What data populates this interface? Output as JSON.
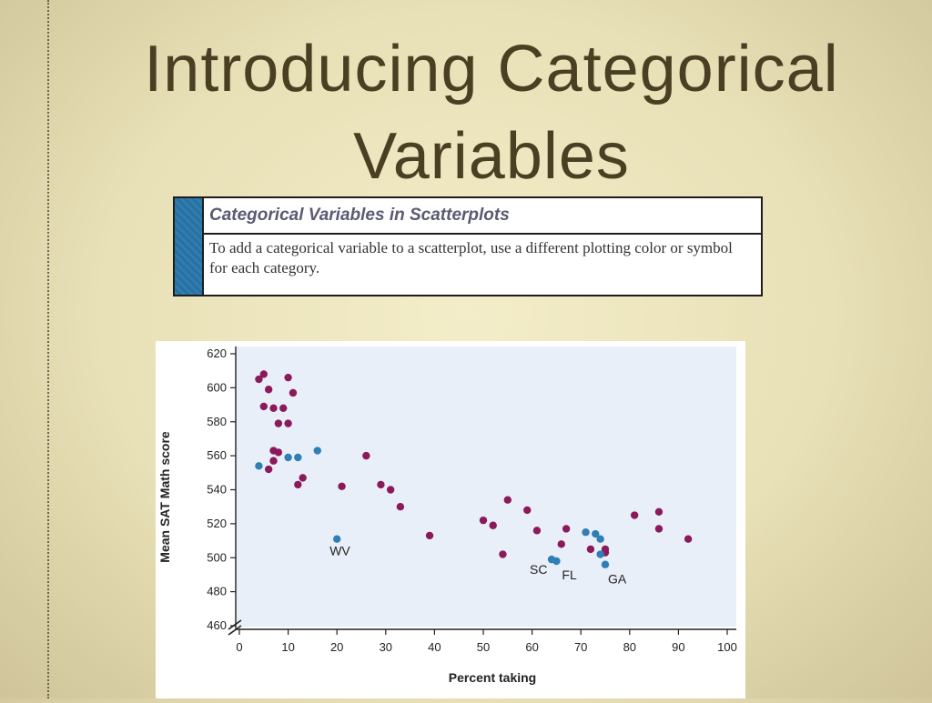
{
  "slide": {
    "title_line1": "Introducing Categorical",
    "title_line2": "Variables"
  },
  "definition_box": {
    "header": "Categorical Variables in Scatterplots",
    "body": "To add a categorical variable to a scatterplot, use a different plotting color or symbol for each category."
  },
  "colors": {
    "category_a": "#8b1a5c",
    "category_b": "#2f7fb5",
    "plot_background": "#e9eff8",
    "title_text": "#4a3f22"
  },
  "chart_data": {
    "type": "scatter",
    "title": "",
    "xlabel": "Percent taking",
    "ylabel": "Mean SAT Math score",
    "xlim": [
      0,
      100
    ],
    "ylim": [
      460,
      620
    ],
    "x_ticks": [
      0,
      10,
      20,
      30,
      40,
      50,
      60,
      70,
      80,
      90,
      100
    ],
    "y_ticks": [
      460,
      480,
      500,
      520,
      540,
      560,
      580,
      600,
      620
    ],
    "y_axis_break": true,
    "grid": false,
    "series": [
      {
        "color": "#8b1a5c",
        "points": [
          [
            4,
            605
          ],
          [
            5,
            608
          ],
          [
            6,
            599
          ],
          [
            5,
            589
          ],
          [
            7,
            588
          ],
          [
            9,
            588
          ],
          [
            10,
            606
          ],
          [
            11,
            597
          ],
          [
            8,
            579
          ],
          [
            10,
            579
          ],
          [
            7,
            563
          ],
          [
            8,
            562
          ],
          [
            7,
            557
          ],
          [
            6,
            552
          ],
          [
            13,
            547
          ],
          [
            12,
            543
          ],
          [
            21,
            542
          ],
          [
            26,
            560
          ],
          [
            29,
            543
          ],
          [
            31,
            540
          ],
          [
            33,
            530
          ],
          [
            39,
            513
          ],
          [
            50,
            522
          ],
          [
            52,
            519
          ],
          [
            55,
            534
          ],
          [
            54,
            502
          ],
          [
            59,
            528
          ],
          [
            61,
            516
          ],
          [
            66,
            508
          ],
          [
            67,
            517
          ],
          [
            72,
            505
          ],
          [
            75,
            505
          ],
          [
            75,
            503
          ],
          [
            81,
            525
          ],
          [
            86,
            527
          ],
          [
            86,
            517
          ],
          [
            92,
            511
          ]
        ]
      },
      {
        "color": "#2f7fb5",
        "points": [
          [
            4,
            554
          ],
          [
            10,
            559
          ],
          [
            12,
            559
          ],
          [
            16,
            563
          ],
          [
            20,
            511
          ],
          [
            64,
            499
          ],
          [
            65,
            498
          ],
          [
            71,
            515
          ],
          [
            73,
            514
          ],
          [
            74,
            511
          ],
          [
            74,
            502
          ],
          [
            75,
            496
          ]
        ]
      }
    ],
    "annotations": [
      {
        "label": "WV",
        "x": 20,
        "y": 511
      },
      {
        "label": "SC",
        "x": 64,
        "y": 499
      },
      {
        "label": "FL",
        "x": 65,
        "y": 498
      },
      {
        "label": "GA",
        "x": 75,
        "y": 496
      }
    ]
  }
}
